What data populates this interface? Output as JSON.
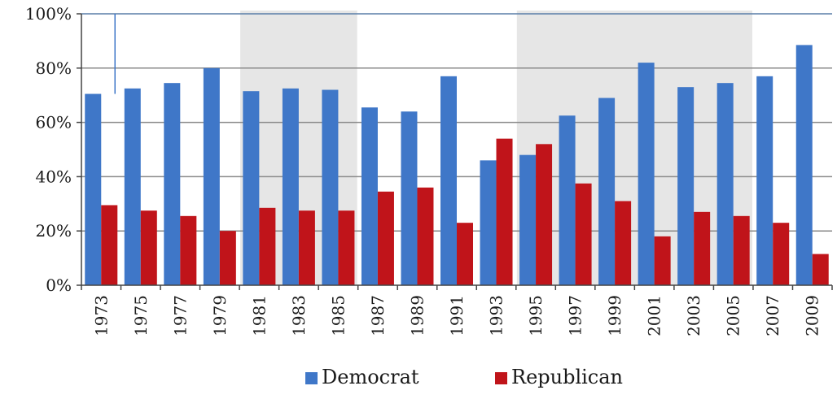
{
  "chart_data": {
    "type": "bar",
    "categories": [
      "1973",
      "1975",
      "1977",
      "1979",
      "1981",
      "1983",
      "1985",
      "1987",
      "1989",
      "1991",
      "1993",
      "1995",
      "1997",
      "1999",
      "2001",
      "2003",
      "2005",
      "2007",
      "2009"
    ],
    "series": [
      {
        "name": "Democrat",
        "color": "#3f77c8",
        "values": [
          70.5,
          72.5,
          74.5,
          80,
          71.5,
          72.5,
          72,
          65.5,
          64,
          77,
          46,
          48,
          62.5,
          69,
          82,
          73,
          74.5,
          77,
          88.5
        ]
      },
      {
        "name": "Republican",
        "color": "#c0141a",
        "values": [
          29.5,
          27.5,
          25.5,
          20,
          28.5,
          27.5,
          27.5,
          34.5,
          36,
          23,
          54,
          52,
          37.5,
          31,
          18,
          27,
          25.5,
          23,
          11.5
        ]
      }
    ],
    "shaded_ranges": [
      [
        "1981",
        "1985"
      ],
      [
        "1995",
        "2005"
      ]
    ],
    "ylim": [
      0,
      100
    ],
    "yticks": [
      "0%",
      "20%",
      "40%",
      "60%",
      "80%",
      "100%"
    ],
    "legend_position": "bottom",
    "grid": true
  }
}
